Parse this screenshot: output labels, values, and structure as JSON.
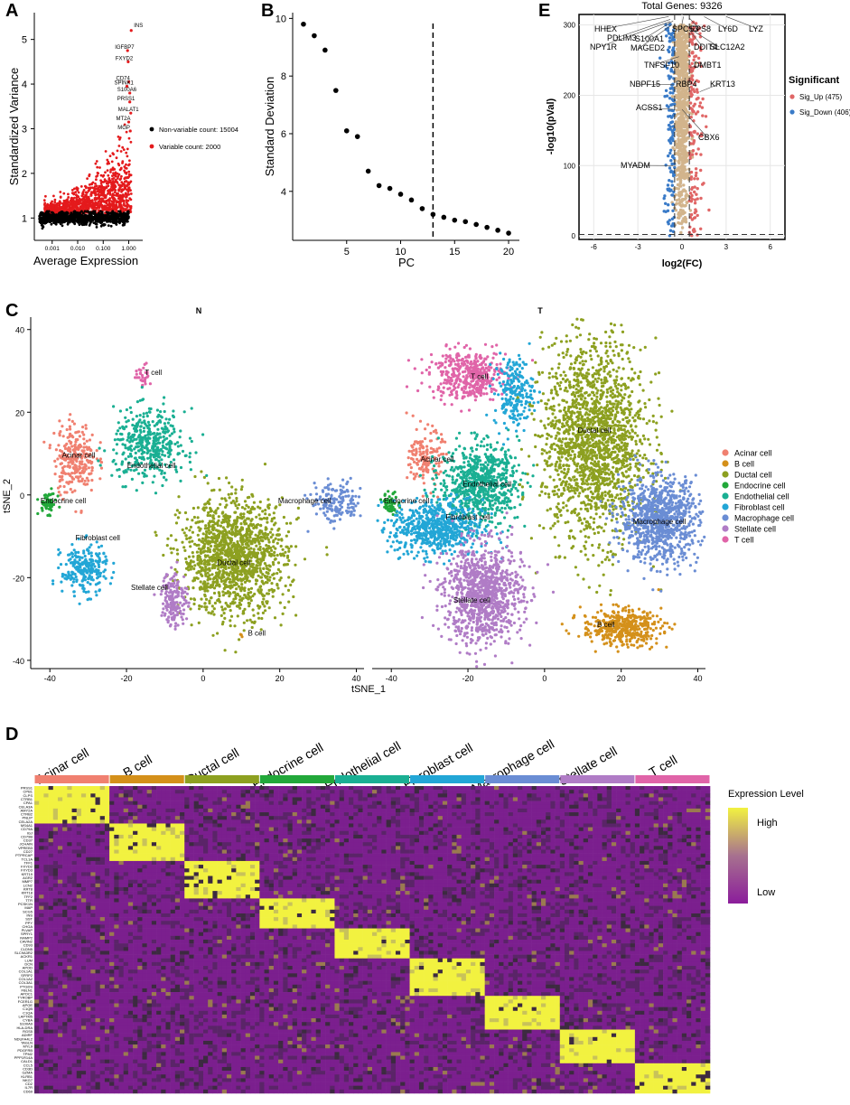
{
  "panel_labels": [
    "A",
    "B",
    "C",
    "D",
    "E"
  ],
  "colors": {
    "acinar": "#F08070",
    "bcell": "#D4901A",
    "ductal": "#8DA020",
    "endocrine": "#22A83A",
    "endothelial": "#1AAF93",
    "fibroblast": "#22A6D6",
    "macrophage": "#6A8DD4",
    "stellate": "#B07CC6",
    "tcell": "#E064A8",
    "red": "#E41A1C",
    "black": "#000000",
    "up": "#E06666",
    "down": "#3A7BC8",
    "ns": "#D2B48C",
    "heat_low": "#7B1F8E",
    "heat_mid": "#3C2A40",
    "heat_high": "#F2F240"
  },
  "chart_data": [
    {
      "id": "A",
      "type": "scatter",
      "xlabel": "Average Expression",
      "ylabel": "Standardized Variance",
      "xscale": "log",
      "xlim": [
        0.0002,
        3
      ],
      "ylim": [
        0.5,
        5.6
      ],
      "x_ticks": [
        0.001,
        0.01,
        0.1,
        1.0
      ],
      "x_tick_labels": [
        "0.001",
        "0.010",
        "0.100",
        "1.000"
      ],
      "y_ticks": [
        1,
        2,
        3,
        4,
        5
      ],
      "legend": [
        {
          "label": "Non-variable count: 15004",
          "color": "black"
        },
        {
          "label": "Variable count: 2000",
          "color": "red"
        }
      ],
      "labeled_genes": [
        {
          "gene": "INS",
          "x": 1.25,
          "y": 5.2
        },
        {
          "gene": "IGFBP7",
          "x": 0.9,
          "y": 4.75
        },
        {
          "gene": "FXYD2",
          "x": 0.95,
          "y": 4.5
        },
        {
          "gene": "CD74",
          "x": 1.0,
          "y": 4.05
        },
        {
          "gene": "SPINK1",
          "x": 0.85,
          "y": 3.95
        },
        {
          "gene": "S100A6",
          "x": 1.1,
          "y": 3.8
        },
        {
          "gene": "PRSS1",
          "x": 1.1,
          "y": 3.6
        },
        {
          "gene": "MALAT1",
          "x": 1.2,
          "y": 3.35
        },
        {
          "gene": "MT2A",
          "x": 1.0,
          "y": 3.15
        },
        {
          "gene": "MGP",
          "x": 1.15,
          "y": 2.95
        }
      ]
    },
    {
      "id": "B",
      "type": "scatter",
      "xlabel": "PC",
      "ylabel": "Standard Deviation",
      "xlim": [
        0,
        21
      ],
      "ylim": [
        2.3,
        10.2
      ],
      "x_ticks": [
        5,
        10,
        15,
        20
      ],
      "y_ticks": [
        4,
        6,
        8,
        10
      ],
      "cutoff_x": 13,
      "x": [
        1,
        2,
        3,
        4,
        5,
        6,
        7,
        8,
        9,
        10,
        11,
        12,
        13,
        14,
        15,
        16,
        17,
        18,
        19,
        20
      ],
      "y": [
        9.8,
        9.4,
        8.9,
        7.5,
        6.1,
        5.9,
        4.7,
        4.2,
        4.1,
        3.9,
        3.7,
        3.4,
        3.2,
        3.1,
        3.0,
        2.95,
        2.85,
        2.75,
        2.65,
        2.55
      ]
    },
    {
      "id": "E",
      "type": "scatter",
      "subtype": "volcano",
      "title": "Total Genes: 9326",
      "xlabel": "log2(FC)",
      "ylabel": "-log10(pVal)",
      "xlim": [
        -7,
        7
      ],
      "ylim": [
        -5,
        315
      ],
      "x_ticks": [
        -6,
        -3,
        0,
        3,
        6
      ],
      "y_ticks": [
        0,
        100,
        200,
        300
      ],
      "hline": 2,
      "vlines": [
        -0.5,
        0.5
      ],
      "legend_title": "Significant",
      "legend": [
        {
          "label": "Sig_Up (475)",
          "color": "up"
        },
        {
          "label": "Sig_Down (406)",
          "color": "down"
        }
      ],
      "labeled_genes": [
        "HHEX",
        "PDLIM3",
        "NPY1R",
        "S100A1",
        "MAGED2",
        "SPCS3",
        "EPS8",
        "LY6D",
        "LYZ",
        "DDIT4",
        "SLC12A2",
        "TNFSF10",
        "DMBT1",
        "NBPF15",
        "RBP4",
        "KRT13",
        "ACSS1",
        "CBX6",
        "MYADM"
      ]
    },
    {
      "id": "C",
      "type": "scatter",
      "subtype": "tsne",
      "facets": [
        "N",
        "T"
      ],
      "xlabel": "tSNE_1",
      "ylabel": "tSNE_2",
      "xlim": [
        -45,
        42
      ],
      "ylim": [
        -42,
        43
      ],
      "x_ticks": [
        -40,
        -20,
        0,
        20,
        40
      ],
      "y_ticks": [
        -40,
        -20,
        0,
        20,
        40
      ],
      "legend": [
        {
          "label": "Acinar cell",
          "color": "acinar"
        },
        {
          "label": "B cell",
          "color": "bcell"
        },
        {
          "label": "Ductal cell",
          "color": "ductal"
        },
        {
          "label": "Endocrine cell",
          "color": "endocrine"
        },
        {
          "label": "Endothelial cell",
          "color": "endothelial"
        },
        {
          "label": "Fibroblast cell",
          "color": "fibroblast"
        },
        {
          "label": "Macrophage cell",
          "color": "macrophage"
        },
        {
          "label": "Stellate cell",
          "color": "stellate"
        },
        {
          "label": "T cell",
          "color": "tcell"
        }
      ],
      "clusters_N": [
        {
          "label": "T cell",
          "color": "tcell",
          "x": -15.5,
          "y": 29,
          "sx": 1.2,
          "sy": 1.5,
          "n": 30
        },
        {
          "label": "Acinar cell",
          "color": "acinar",
          "x": -33.5,
          "y": 9,
          "sx": 3.2,
          "sy": 5,
          "n": 260
        },
        {
          "label": "Endothelial cell",
          "color": "endothelial",
          "x": -14,
          "y": 12,
          "sx": 5.5,
          "sy": 5,
          "n": 420
        },
        {
          "label": "Endocrine cell",
          "color": "endocrine",
          "x": -40.5,
          "y": -2,
          "sx": 1.3,
          "sy": 1.5,
          "n": 60
        },
        {
          "label": "Macrophage cell",
          "color": "macrophage",
          "x": 35,
          "y": -2,
          "sx": 4,
          "sy": 3,
          "n": 160
        },
        {
          "label": "Fibroblast cell",
          "color": "fibroblast",
          "x": -31,
          "y": -18,
          "sx": 3.5,
          "sy": 3.5,
          "n": 240
        },
        {
          "label": "Ductal cell",
          "color": "ductal",
          "x": 8,
          "y": -15,
          "sx": 8,
          "sy": 8,
          "n": 1400
        },
        {
          "label": "Stellate cell",
          "color": "stellate",
          "x": -7.5,
          "y": -25,
          "sx": 2,
          "sy": 4,
          "n": 160
        },
        {
          "label": "B cell",
          "color": "bcell",
          "x": 10,
          "y": -34,
          "sx": 0.4,
          "sy": 0.4,
          "n": 3
        }
      ],
      "labels_N": [
        {
          "text": "T cell",
          "x": -13,
          "y": 29
        },
        {
          "text": "Acinar cell",
          "x": -32.5,
          "y": 9
        },
        {
          "text": "Endothelial cell",
          "x": -13.5,
          "y": 6.5
        },
        {
          "text": "Endocrine cell",
          "x": -36.5,
          "y": -2
        },
        {
          "text": "Macrophage cell",
          "x": 26.5,
          "y": -2
        },
        {
          "text": "Fibroblast cell",
          "x": -27.5,
          "y": -11
        },
        {
          "text": "Ductal cell",
          "x": 8,
          "y": -17
        },
        {
          "text": "Stellate cell",
          "x": -14,
          "y": -23
        },
        {
          "text": "B cell",
          "x": 14,
          "y": -34
        }
      ],
      "clusters_T": [
        {
          "label": "T cell",
          "color": "tcell",
          "x": -20,
          "y": 29,
          "sx": 6,
          "sy": 3.5,
          "n": 420
        },
        {
          "label": "Acinar cell",
          "color": "acinar",
          "x": -31,
          "y": 9,
          "sx": 2.5,
          "sy": 4,
          "n": 150
        },
        {
          "label": "Endothelial cell",
          "color": "endothelial",
          "x": -17,
          "y": 3,
          "sx": 6,
          "sy": 5.5,
          "n": 700
        },
        {
          "label": "Endocrine cell",
          "color": "endocrine",
          "x": -40,
          "y": -2,
          "sx": 1.3,
          "sy": 1.5,
          "n": 60
        },
        {
          "label": "Fibroblast cell",
          "color": "fibroblast",
          "x": -28,
          "y": -8,
          "sx": 7,
          "sy": 4,
          "n": 650
        },
        {
          "label": "Fibroblast cell",
          "color": "fibroblast",
          "x": -8,
          "y": 25,
          "sx": 3,
          "sy": 5,
          "n": 220
        },
        {
          "label": "Ductal cell",
          "color": "ductal",
          "x": 13,
          "y": 13,
          "sx": 8,
          "sy": 14,
          "n": 1800
        },
        {
          "label": "Macrophage cell",
          "color": "macrophage",
          "x": 30,
          "y": -6,
          "sx": 6,
          "sy": 6,
          "n": 900
        },
        {
          "label": "Stellate cell",
          "color": "stellate",
          "x": -16,
          "y": -24,
          "sx": 6,
          "sy": 7,
          "n": 1000
        },
        {
          "label": "B cell",
          "color": "bcell",
          "x": 20,
          "y": -32,
          "sx": 6,
          "sy": 2.5,
          "n": 420
        }
      ],
      "labels_T": [
        {
          "text": "T cell",
          "x": -17,
          "y": 28
        },
        {
          "text": "Acinar cell",
          "x": -28,
          "y": 8
        },
        {
          "text": "Endothelial cell",
          "x": -15,
          "y": 2
        },
        {
          "text": "Endocrine cell",
          "x": -36,
          "y": -2
        },
        {
          "text": "Ductal cell",
          "x": 13,
          "y": 15
        },
        {
          "text": "Fibroblast cell",
          "x": -20,
          "y": -6
        },
        {
          "text": "Macrophage cell",
          "x": 30,
          "y": -7
        },
        {
          "text": "Stellate cell",
          "x": -19,
          "y": -26
        },
        {
          "text": "B cell",
          "x": 16,
          "y": -32
        }
      ]
    },
    {
      "id": "D",
      "type": "heatmap",
      "columns": [
        "Acinar cell",
        "B cell",
        "Ductal cell",
        "Endocrine cell",
        "Endothelial cell",
        "Fibroblast cell",
        "Macrophage cell",
        "Stellate cell",
        "T cell"
      ],
      "column_colors": [
        "acinar",
        "bcell",
        "ductal",
        "endocrine",
        "endothelial",
        "fibroblast",
        "macrophage",
        "stellate",
        "tcell"
      ],
      "genes": [
        "PRSS1",
        "CPB1",
        "CLPS",
        "CTRB1",
        "CPA1",
        "CELA3A",
        "AMY2A",
        "CTRB2",
        "PNLIP",
        "CELA2A",
        "MS4A1",
        "CD79A",
        "IGJ",
        "CD79B",
        "CD37",
        "JCHAIN",
        "VPREB3",
        "CD27",
        "PTPRCAP",
        "TCL1A",
        "TFF1",
        "FXYD2",
        "FXYD3",
        "KRT19",
        "AGR2",
        "MMP7",
        "LCN2",
        "KRT8",
        "KRT18",
        "TFF2",
        "TTR",
        "PCSK1N",
        "MAP",
        "SCG5",
        "INS",
        "SST",
        "PPY",
        "CHGA",
        "PLVAP",
        "SPRY1",
        "RAMP2",
        "CAVIN2",
        "CD93",
        "CLDN5",
        "SLC9A3R2",
        "ACKR1",
        "LUM",
        "DCN",
        "APOD",
        "COL1A1",
        "SFRP2",
        "COL1A2",
        "COL3A1",
        "PTGDS",
        "FBLN1",
        "APOC1",
        "TYROBP",
        "FCER1G",
        "APOE",
        "C1QB",
        "C1QA",
        "LAPTM5",
        "CYBA",
        "S100A9",
        "HLA-DRA",
        "RGS5",
        "ADIRF",
        "NDUFA4L2",
        "TAGLN",
        "MYL9",
        "PDGFRB",
        "TPM2",
        "PPP1R14A",
        "CALD1",
        "CCL5",
        "CD3D",
        "GZMA",
        "KLRB1",
        "NKG7",
        "CD2",
        "IL7R",
        "CD69"
      ],
      "blocks": [
        [
          0,
          10
        ],
        [
          10,
          20
        ],
        [
          20,
          30
        ],
        [
          30,
          38
        ],
        [
          38,
          46
        ],
        [
          46,
          56
        ],
        [
          56,
          65
        ],
        [
          65,
          74
        ],
        [
          74,
          82
        ]
      ],
      "legend_title": "Expression Level",
      "legend_high": "High",
      "legend_low": "Low"
    }
  ]
}
